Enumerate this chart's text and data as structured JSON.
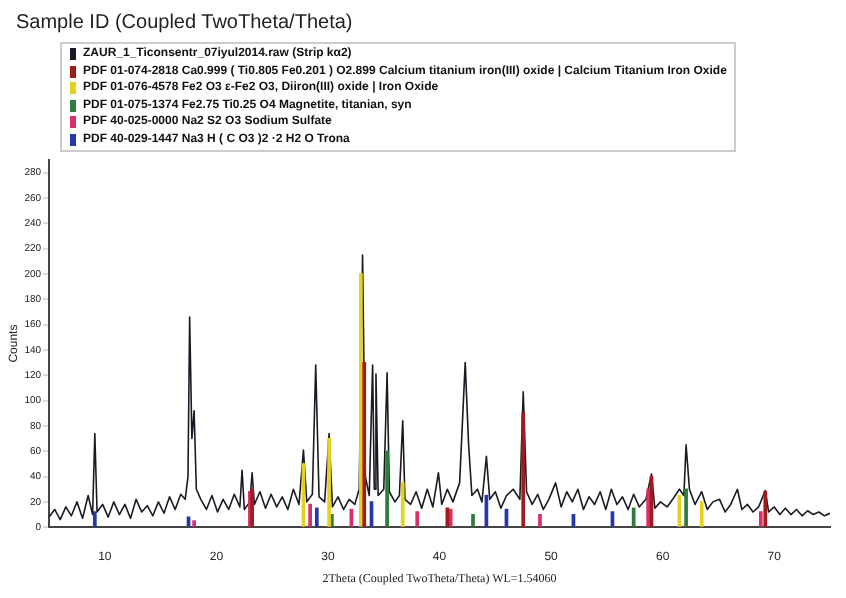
{
  "chart_data": {
    "type": "line",
    "title": "Sample ID (Coupled TwoTheta/Theta)",
    "xlabel": "2Theta (Coupled TwoTheta/Theta) WL=1.54060",
    "ylabel": "Counts",
    "xlim": [
      5,
      75
    ],
    "xticks": [
      10,
      20,
      30,
      40,
      50,
      60,
      70
    ],
    "ylim": [
      0,
      290
    ],
    "yticks": [
      0,
      20,
      40,
      60,
      80,
      100,
      120,
      140,
      160,
      180,
      200,
      220,
      240,
      260,
      280
    ],
    "grid": false,
    "legend": "top left",
    "marker": "none",
    "series": [
      {
        "name": "ZAUR_1_Ticonsentr_07iyul2014.raw (Strip kα2)",
        "color": "#1a1a24",
        "x": [
          5,
          5.5,
          6,
          6.5,
          7,
          7.5,
          8,
          8.5,
          8.9,
          9.1,
          9.3,
          9.8,
          10.3,
          10.8,
          11.3,
          11.8,
          12.3,
          12.8,
          13.3,
          13.8,
          14.3,
          14.8,
          15.3,
          15.8,
          16.3,
          16.8,
          17.2,
          17.45,
          17.6,
          17.8,
          18.0,
          18.2,
          18.6,
          19.1,
          19.6,
          20.1,
          20.6,
          21.1,
          21.6,
          22.1,
          22.3,
          22.5,
          23.0,
          23.2,
          23.4,
          23.9,
          24.4,
          24.9,
          25.4,
          25.9,
          26.4,
          26.9,
          27.4,
          27.8,
          28.1,
          28.6,
          28.9,
          29.2,
          29.7,
          30.1,
          30.4,
          30.9,
          31.4,
          31.9,
          32.4,
          32.8,
          33.1,
          33.35,
          33.7,
          34.0,
          34.15,
          34.3,
          34.5,
          35.0,
          35.3,
          35.5,
          36.0,
          36.4,
          36.7,
          36.9,
          37.4,
          37.9,
          38.4,
          38.9,
          39.4,
          39.9,
          40.2,
          40.7,
          41.2,
          41.8,
          42.3,
          42.6,
          42.9,
          43.4,
          43.8,
          44.2,
          44.5,
          45.0,
          45.5,
          46.0,
          46.6,
          47.2,
          47.5,
          47.8,
          48.3,
          48.8,
          49.3,
          49.8,
          50.4,
          50.9,
          51.4,
          51.9,
          52.4,
          52.9,
          53.4,
          53.9,
          54.4,
          54.9,
          55.4,
          55.9,
          56.4,
          56.9,
          57.4,
          57.9,
          58.5,
          59.0,
          59.3,
          59.8,
          60.4,
          60.9,
          61.5,
          61.9,
          62.1,
          62.4,
          62.9,
          63.5,
          64.0,
          64.5,
          65.1,
          65.6,
          66.1,
          66.7,
          67.1,
          67.6,
          68.1,
          68.6,
          69.2,
          69.5,
          70.0,
          70.5,
          71.0,
          71.5,
          72.0,
          72.5,
          73.0,
          73.5,
          74.0,
          74.5,
          75
        ],
        "values": [
          8,
          14,
          6,
          16,
          9,
          20,
          7,
          25,
          10,
          74,
          12,
          18,
          8,
          20,
          10,
          18,
          7,
          22,
          12,
          17,
          9,
          20,
          11,
          24,
          14,
          26,
          22,
          40,
          166,
          70,
          92,
          30,
          22,
          14,
          25,
          12,
          22,
          14,
          26,
          16,
          45,
          14,
          20,
          43,
          18,
          28,
          15,
          26,
          16,
          24,
          14,
          30,
          18,
          61,
          20,
          26,
          128,
          24,
          20,
          74,
          16,
          24,
          14,
          22,
          18,
          30,
          215,
          40,
          25,
          128,
          30,
          121,
          25,
          30,
          122,
          28,
          20,
          25,
          84,
          22,
          18,
          28,
          15,
          30,
          16,
          43,
          18,
          30,
          20,
          35,
          130,
          66,
          25,
          30,
          20,
          56,
          22,
          28,
          15,
          25,
          30,
          22,
          107,
          28,
          18,
          26,
          14,
          22,
          35,
          16,
          28,
          20,
          30,
          14,
          24,
          18,
          28,
          14,
          30,
          18,
          24,
          14,
          26,
          16,
          22,
          42,
          15,
          20,
          16,
          22,
          30,
          25,
          65,
          30,
          18,
          28,
          14,
          20,
          22,
          12,
          18,
          30,
          14,
          18,
          12,
          16,
          29,
          12,
          16,
          10,
          15,
          10,
          14,
          9,
          13,
          10,
          12,
          9,
          11
        ]
      },
      {
        "name": "PDF 01-074-2818 Ca0.999 ( Ti0.805 Fe0.201 ) O2.899 Calcium titanium iron(III) oxide | Calcium Titanium Iron Oxide",
        "type": "bar",
        "color": "#a01c1c",
        "x": [
          23.2,
          33.25,
          40.7,
          47.5,
          59.0,
          69.2
        ],
        "values": [
          30,
          130,
          15,
          90,
          40,
          28
        ]
      },
      {
        "name": "PDF 01-076-4578 Fe2 O3 ε-Fe2 O3, Diiron(III) oxide | Iron Oxide",
        "type": "bar",
        "color": "#e6d21e",
        "x": [
          27.8,
          30.1,
          32.95,
          36.7,
          61.5,
          63.5
        ],
        "values": [
          50,
          70,
          200,
          35,
          25,
          20
        ]
      },
      {
        "name": "PDF 01-075-1374 Fe2.75 Ti0.25 O4 Magnetite, titanian, syn",
        "type": "bar",
        "color": "#2e7d3c",
        "x": [
          30.35,
          35.3,
          43.0,
          57.4,
          62.1
        ],
        "values": [
          10,
          60,
          10,
          15,
          30
        ]
      },
      {
        "name": "PDF 40-025-0000 Na2 S2 O3 Sodium Sulfate",
        "type": "bar",
        "color": "#d8306a",
        "x": [
          18.0,
          23.0,
          28.4,
          32.1,
          38.0,
          41.0,
          49.0,
          58.7,
          68.8
        ],
        "values": [
          5,
          28,
          18,
          14,
          12,
          14,
          10,
          30,
          12
        ]
      },
      {
        "name": "PDF 40-029-1447 Na3 H ( C O3 )2 ·2 H2 O Trona",
        "type": "bar",
        "color": "#2838a8",
        "x": [
          9.1,
          17.5,
          29.0,
          33.9,
          44.2,
          46.0,
          52.0,
          55.5
        ],
        "values": [
          12,
          8,
          15,
          20,
          25,
          14,
          10,
          12
        ]
      }
    ]
  }
}
